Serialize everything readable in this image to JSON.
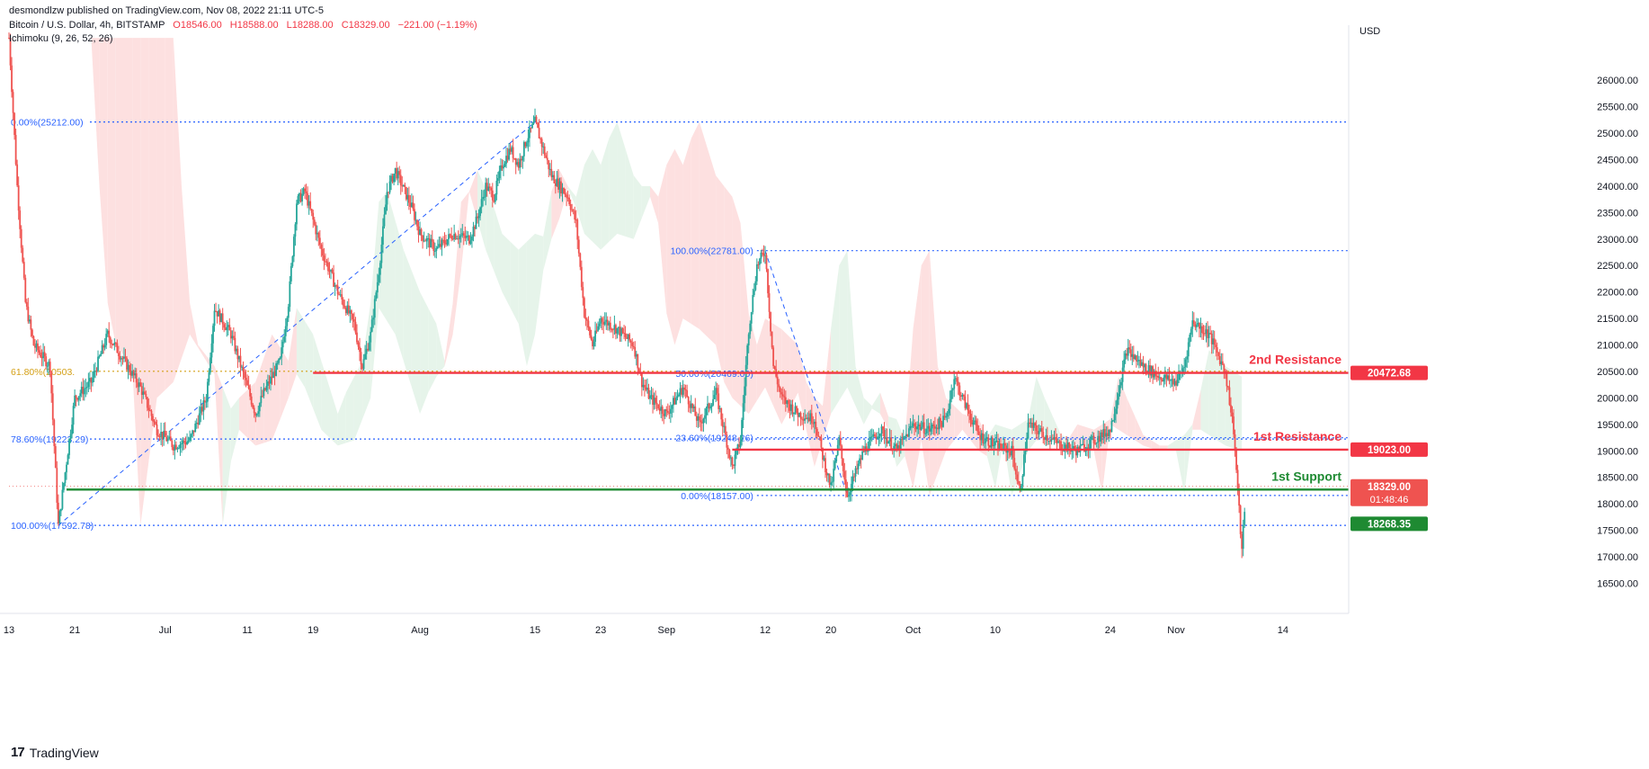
{
  "header": {
    "published": "desmondlzw published on TradingView.com, Nov 08, 2022 21:11 UTC-5",
    "symbol": "Bitcoin / U.S. Dollar, 4h, BITSTAMP",
    "open": "O18546.00",
    "high": "H18588.00",
    "low": "L18288.00",
    "close": "C18329.00",
    "change": "−221.00 (−1.19%)",
    "indicator": "Ichimoku (9, 26, 52, 26)",
    "currency": "USD"
  },
  "footer": {
    "brand": "TradingView",
    "logo": "17"
  },
  "colors": {
    "up": "#26a69a",
    "down": "#ef5350",
    "resistance": "#f23645",
    "support": "#1e8a32",
    "fib": "#2962ff",
    "fib_text": "#2962ff",
    "gold": "#d4a017",
    "cloud_red": "#fde0e0",
    "cloud_green": "#e6f4ea"
  },
  "chart_data": {
    "type": "candlestick",
    "y_range": [
      16100,
      26700
    ],
    "y_ticks": [
      "26000.00",
      "25500.00",
      "25000.00",
      "24500.00",
      "24000.00",
      "23500.00",
      "23000.00",
      "22500.00",
      "22000.00",
      "21500.00",
      "21000.00",
      "20500.00",
      "20000.00",
      "19500.00",
      "19000.00",
      "18500.00",
      "18000.00",
      "17500.00",
      "17000.00",
      "16500.00"
    ],
    "y_tick_values": [
      26000,
      25500,
      25000,
      24500,
      24000,
      23500,
      23000,
      22500,
      22000,
      21500,
      21000,
      20500,
      20000,
      19500,
      19000,
      18500,
      18000,
      17500,
      17000,
      16500
    ],
    "x_ticks": [
      "13",
      "21",
      "Jul",
      "11",
      "19",
      "Aug",
      "15",
      "23",
      "Sep",
      "12",
      "20",
      "Oct",
      "10",
      "24",
      "Nov",
      "14"
    ],
    "x_tick_days": [
      0,
      8,
      19,
      29,
      37,
      50,
      64,
      72,
      80,
      92,
      100,
      110,
      120,
      134,
      142,
      155
    ],
    "price_path": [
      [
        0,
        26800
      ],
      [
        1,
        24000
      ],
      [
        2,
        21800
      ],
      [
        3,
        21000
      ],
      [
        5,
        20600
      ],
      [
        6,
        17592
      ],
      [
        8,
        20000
      ],
      [
        10,
        20300
      ],
      [
        12,
        21200
      ],
      [
        14,
        20700
      ],
      [
        16,
        20200
      ],
      [
        18,
        19400
      ],
      [
        20,
        19100
      ],
      [
        22,
        19200
      ],
      [
        24,
        20000
      ],
      [
        25,
        21700
      ],
      [
        27,
        21200
      ],
      [
        29,
        20200
      ],
      [
        30,
        19700
      ],
      [
        31,
        20100
      ],
      [
        33,
        20700
      ],
      [
        34,
        21800
      ],
      [
        35,
        23700
      ],
      [
        36,
        23900
      ],
      [
        38,
        22800
      ],
      [
        40,
        22000
      ],
      [
        42,
        21400
      ],
      [
        43,
        20600
      ],
      [
        44,
        21200
      ],
      [
        45,
        22400
      ],
      [
        46,
        23900
      ],
      [
        47,
        24300
      ],
      [
        49,
        23600
      ],
      [
        50,
        23100
      ],
      [
        52,
        22800
      ],
      [
        54,
        23100
      ],
      [
        56,
        23000
      ],
      [
        57,
        23400
      ],
      [
        58,
        24000
      ],
      [
        59,
        23800
      ],
      [
        60,
        24400
      ],
      [
        61,
        24700
      ],
      [
        62,
        24400
      ],
      [
        63,
        24900
      ],
      [
        64,
        25212
      ],
      [
        66,
        24200
      ],
      [
        68,
        23800
      ],
      [
        69,
        23300
      ],
      [
        70,
        21600
      ],
      [
        71,
        21000
      ],
      [
        72,
        21500
      ],
      [
        74,
        21300
      ],
      [
        76,
        21000
      ],
      [
        77,
        20300
      ],
      [
        78,
        20000
      ],
      [
        80,
        19700
      ],
      [
        82,
        20200
      ],
      [
        84,
        19500
      ],
      [
        86,
        20100
      ],
      [
        88,
        18700
      ],
      [
        89,
        19200
      ],
      [
        90,
        21300
      ],
      [
        91,
        22500
      ],
      [
        92,
        22781
      ],
      [
        93,
        20600
      ],
      [
        94,
        20000
      ],
      [
        96,
        19700
      ],
      [
        98,
        19600
      ],
      [
        99,
        18900
      ],
      [
        100,
        18300
      ],
      [
        101,
        19200
      ],
      [
        102,
        18157
      ],
      [
        104,
        19000
      ],
      [
        106,
        19400
      ],
      [
        108,
        19000
      ],
      [
        110,
        19500
      ],
      [
        112,
        19400
      ],
      [
        114,
        19600
      ],
      [
        115,
        20400
      ],
      [
        116,
        20000
      ],
      [
        118,
        19300
      ],
      [
        120,
        19100
      ],
      [
        122,
        19000
      ],
      [
        123,
        18200
      ],
      [
        124,
        19500
      ],
      [
        126,
        19300
      ],
      [
        128,
        19100
      ],
      [
        130,
        19000
      ],
      [
        132,
        19200
      ],
      [
        134,
        19400
      ],
      [
        136,
        20900
      ],
      [
        138,
        20600
      ],
      [
        140,
        20400
      ],
      [
        142,
        20300
      ],
      [
        143,
        20600
      ],
      [
        144,
        21450
      ],
      [
        146,
        21200
      ],
      [
        148,
        20500
      ],
      [
        149,
        19400
      ],
      [
        150,
        17100
      ],
      [
        150.5,
        18329
      ]
    ],
    "levels": [
      {
        "label": "2nd Resistance",
        "price": 20472.68,
        "price_label": "20472.68",
        "kind": "resistance"
      },
      {
        "label": "1st Resistance",
        "price": 19023.0,
        "price_label": "19023.00",
        "kind": "resistance"
      },
      {
        "label": "1st Support",
        "price": 18268.35,
        "price_label": "18268.35",
        "kind": "support"
      }
    ],
    "last_price": {
      "price": 18329.0,
      "label": "18329.00",
      "countdown": "01:48:46"
    },
    "fib_left": [
      {
        "text": "0.00%(25212.00)",
        "price": 25212
      },
      {
        "text": "61.80%(20503.",
        "price": 20503
      },
      {
        "text": "78.60%(19223.29)",
        "price": 19223.29
      },
      {
        "text": "100.00%(17592.78)",
        "price": 17592.78
      }
    ],
    "fib_right": [
      {
        "text": "100.00%(22781.00)",
        "price": 22781
      },
      {
        "text": "50.00%(20469.00)",
        "price": 20469
      },
      {
        "text": "23.60%(19248.26)",
        "price": 19248.26
      },
      {
        "text": "0.00%(18157.00)",
        "price": 18157
      }
    ]
  }
}
